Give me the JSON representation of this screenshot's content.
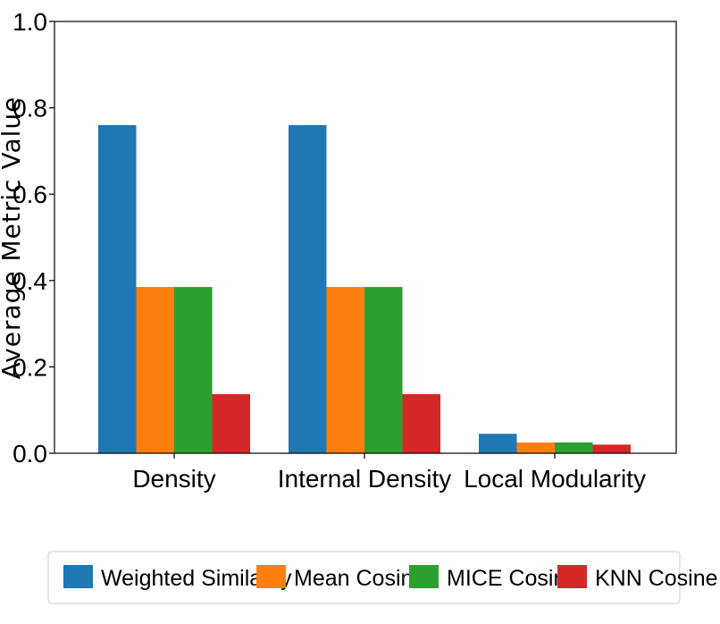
{
  "chart_data": {
    "type": "bar",
    "title": "",
    "xlabel": "",
    "ylabel": "Average Metric Value",
    "ylim": [
      0.0,
      1.0
    ],
    "yticks": [
      "0.0",
      "0.2",
      "0.4",
      "0.6",
      "0.8",
      "1.0"
    ],
    "categories": [
      "Density",
      "Internal Density",
      "Local Modularity"
    ],
    "series": [
      {
        "name": "Weighted Similarity",
        "color": "#1f77b4",
        "values": [
          0.76,
          0.76,
          0.045
        ]
      },
      {
        "name": "Mean Cosine",
        "color": "#ff7f0e",
        "values": [
          0.385,
          0.385,
          0.025
        ]
      },
      {
        "name": "MICE Cosine",
        "color": "#2ca02c",
        "values": [
          0.385,
          0.385,
          0.025
        ]
      },
      {
        "name": "KNN Cosine",
        "color": "#d62728",
        "values": [
          0.137,
          0.137,
          0.02
        ]
      }
    ],
    "grid": false,
    "legend_placement": "bottom"
  }
}
